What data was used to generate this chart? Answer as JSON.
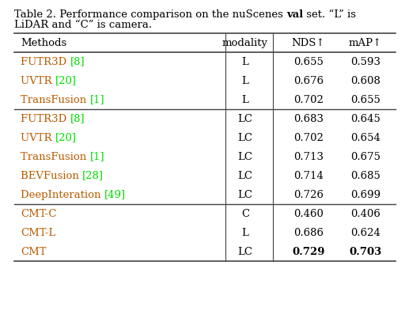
{
  "title": "Table 2. Performance comparison on the nuScenes val set. “L” is\nLiDAR and “C” is camera.",
  "col_headers": [
    "Methods",
    "modality",
    "NDS↑",
    "mAP↑"
  ],
  "groups": [
    {
      "rows": [
        {
          "method": "FUTR3D",
          "cite": "[8]",
          "modality": "L",
          "nds": "0.655",
          "map": "0.593",
          "bold_nds": false,
          "bold_map": false
        },
        {
          "method": "UVTR",
          "cite": "[20]",
          "modality": "L",
          "nds": "0.676",
          "map": "0.608",
          "bold_nds": false,
          "bold_map": false
        },
        {
          "method": "TransFusion",
          "cite": "[1]",
          "modality": "L",
          "nds": "0.702",
          "map": "0.655",
          "bold_nds": false,
          "bold_map": false
        }
      ]
    },
    {
      "rows": [
        {
          "method": "FUTR3D",
          "cite": "[8]",
          "modality": "LC",
          "nds": "0.683",
          "map": "0.645",
          "bold_nds": false,
          "bold_map": false
        },
        {
          "method": "UVTR",
          "cite": "[20]",
          "modality": "LC",
          "nds": "0.702",
          "map": "0.654",
          "bold_nds": false,
          "bold_map": false
        },
        {
          "method": "TransFusion",
          "cite": "[1]",
          "modality": "LC",
          "nds": "0.713",
          "map": "0.675",
          "bold_nds": false,
          "bold_map": false
        },
        {
          "method": "BEVFusion",
          "cite": "[28]",
          "modality": "LC",
          "nds": "0.714",
          "map": "0.685",
          "bold_nds": false,
          "bold_map": false
        },
        {
          "method": "DeepInteration",
          "cite": "[49]",
          "modality": "LC",
          "nds": "0.726",
          "map": "0.699",
          "bold_nds": false,
          "bold_map": false
        }
      ]
    },
    {
      "rows": [
        {
          "method": "CMT-C",
          "cite": "",
          "modality": "C",
          "nds": "0.460",
          "map": "0.406",
          "bold_nds": false,
          "bold_map": false
        },
        {
          "method": "CMT-L",
          "cite": "",
          "modality": "L",
          "nds": "0.686",
          "map": "0.624",
          "bold_nds": false,
          "bold_map": false
        },
        {
          "method": "CMT",
          "cite": "",
          "modality": "LC",
          "nds": "0.729",
          "map": "0.703",
          "bold_nds": true,
          "bold_map": true
        }
      ]
    }
  ],
  "cite_color": "#00dd00",
  "method_color": "#b85c00",
  "header_color": "#000000",
  "data_color": "#000000",
  "bg_color": "#ffffff",
  "fontsize": 9.5,
  "title_fontsize": 9.5,
  "figsize": [
    5.12,
    4.12
  ],
  "dpi": 100
}
